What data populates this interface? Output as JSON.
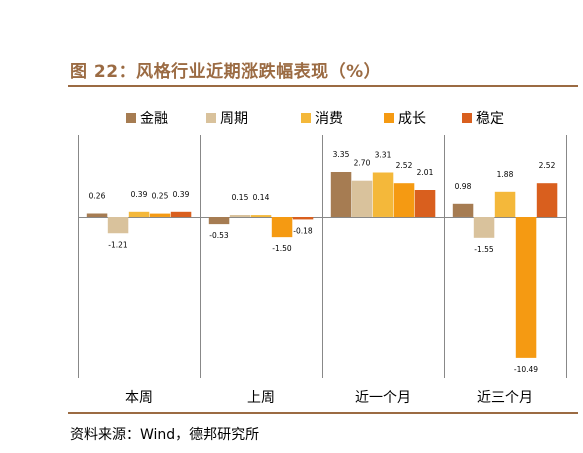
{
  "figure": {
    "title": "图 22：风格行业近期涨跌幅表现（%）",
    "source": "资料来源：Wind，德邦研究所"
  },
  "colors": {
    "title": "#9B6B43",
    "rule": "#9B6B43"
  },
  "chart_data": {
    "type": "bar",
    "categories": [
      "本周",
      "上周",
      "近一个月",
      "近三个月"
    ],
    "series": [
      {
        "name": "金融",
        "color": "#A67C52",
        "values": [
          0.26,
          -0.53,
          3.35,
          0.98
        ],
        "labels": [
          "0.26",
          "-0.53",
          "3.35",
          "0.98"
        ]
      },
      {
        "name": "周期",
        "color": "#D9C29C",
        "values": [
          -1.21,
          0.15,
          2.7,
          -1.55
        ],
        "labels": [
          "-1.21",
          "0.15",
          "2.70",
          "-1.55"
        ]
      },
      {
        "name": "消费",
        "color": "#F4B83A",
        "values": [
          0.39,
          0.14,
          3.31,
          1.88
        ],
        "labels": [
          "0.39",
          "0.14",
          "3.31",
          "1.88"
        ]
      },
      {
        "name": "成长",
        "color": "#F59A12",
        "values": [
          0.25,
          -1.5,
          2.52,
          -10.49
        ],
        "labels": [
          "0.25",
          "-1.50",
          "2.52",
          "-10.49"
        ]
      },
      {
        "name": "稳定",
        "color": "#D95F1E",
        "values": [
          0.39,
          -0.18,
          2.01,
          2.52
        ],
        "labels": [
          "0.39",
          "-0.18",
          "2.01",
          "2.52"
        ]
      }
    ],
    "legend_position": "top",
    "grid": false,
    "ylim": [
      -11.5,
      5.0
    ]
  }
}
